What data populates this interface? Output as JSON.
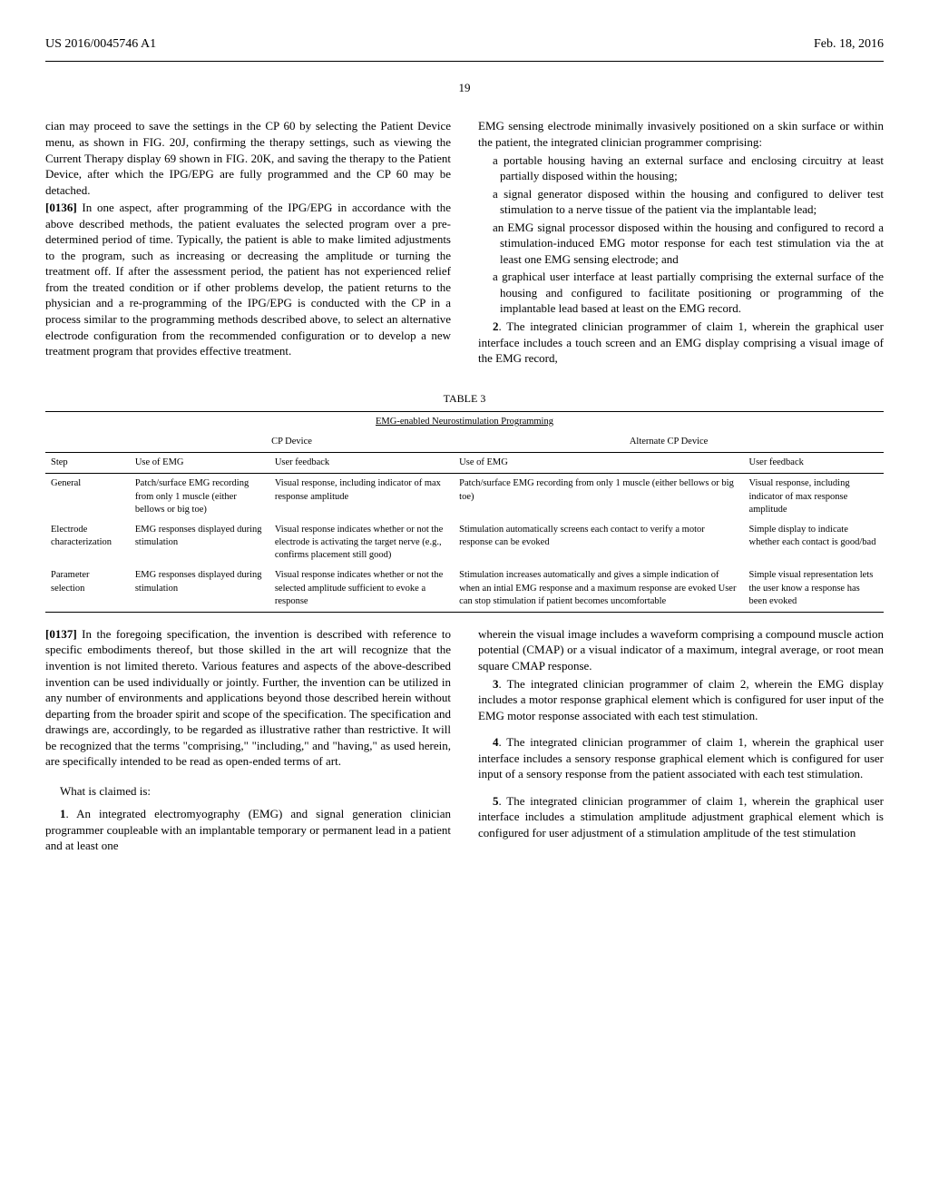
{
  "header": {
    "pub_number": "US 2016/0045746 A1",
    "pub_date": "Feb. 18, 2016"
  },
  "page_number": "19",
  "left_top": {
    "p1": "cian may proceed to save the settings in the CP 60 by selecting the Patient Device menu, as shown in FIG. 20J, confirming the therapy settings, such as viewing the Current Therapy display 69 shown in FIG. 20K, and saving the therapy to the Patient Device, after which the IPG/EPG are fully programmed and the CP 60 may be detached.",
    "p2_prefix": "[0136]",
    "p2": " In one aspect, after programming of the IPG/EPG in accordance with the above described methods, the patient evaluates the selected program over a pre-determined period of time. Typically, the patient is able to make limited adjustments to the program, such as increasing or decreasing the amplitude or turning the treatment off. If after the assessment period, the patient has not experienced relief from the treated condition or if other problems develop, the patient returns to the physician and a re-programming of the IPG/EPG is conducted with the CP in a process similar to the programming methods described above, to select an alternative electrode configuration from the recommended configuration or to develop a new treatment program that provides effective treatment."
  },
  "right_top": {
    "p1": "EMG sensing electrode minimally invasively positioned on a skin surface or within the patient, the integrated clinician programmer comprising:",
    "sub1": "a portable housing having an external surface and enclosing circuitry at least partially disposed within the housing;",
    "sub2": "a signal generator disposed within the housing and configured to deliver test stimulation to a nerve tissue of the patient via the implantable lead;",
    "sub3": "an EMG signal processor disposed within the housing and configured to record a stimulation-induced EMG motor response for each test stimulation via the at least one EMG sensing electrode; and",
    "sub4": "a graphical user interface at least partially comprising the external surface of the housing and configured to facilitate positioning or programming of the implantable lead based at least on the EMG record.",
    "claim2": ". The integrated clinician programmer of claim 1, wherein the graphical user interface includes a touch screen and an EMG display comprising a visual image of the EMG record,"
  },
  "table": {
    "title": "TABLE 3",
    "caption": "EMG-enabled Neurostimulation Programming",
    "group1": "CP Device",
    "group2": "Alternate CP Device",
    "col_step": "Step",
    "col_use1": "Use of EMG",
    "col_fb1": "User feedback",
    "col_use2": "Use of EMG",
    "col_fb2": "User feedback",
    "rows": [
      {
        "step": "General",
        "use1": "Patch/surface EMG recording from only 1 muscle (either bellows or big toe)",
        "fb1": "Visual response, including indicator of max response amplitude",
        "use2": "Patch/surface EMG recording from only 1 muscle (either bellows or big toe)",
        "fb2": "Visual response, including indicator of max response amplitude"
      },
      {
        "step": "Electrode characterization",
        "use1": "EMG responses displayed during stimulation",
        "fb1": "Visual response indicates whether or not the electrode is activating the target nerve (e.g., confirms placement still good)",
        "use2": "Stimulation automatically screens each contact to verify a motor response can be evoked",
        "fb2": "Simple display to indicate whether each contact is good/bad"
      },
      {
        "step": "Parameter selection",
        "use1": "EMG responses displayed during stimulation",
        "fb1": "Visual response indicates whether or not the selected amplitude sufficient to evoke a response",
        "use2": "Stimulation increases automatically and gives a simple indication of when an intial EMG response and a maximum response are evoked User can stop stimulation if patient becomes uncomfortable",
        "fb2": "Simple visual representation lets the user know a response has been evoked"
      }
    ]
  },
  "left_bottom": {
    "p1_prefix": "[0137]",
    "p1": " In the foregoing specification, the invention is described with reference to specific embodiments thereof, but those skilled in the art will recognize that the invention is not limited thereto. Various features and aspects of the above-described invention can be used individually or jointly. Further, the invention can be utilized in any number of environments and applications beyond those described herein without departing from the broader spirit and scope of the specification. The specification and drawings are, accordingly, to be regarded as illustrative rather than restrictive. It will be recognized that the terms \"comprising,\" \"including,\" and \"having,\" as used herein, are specifically intended to be read as open-ended terms of art.",
    "claims_heading": "What is claimed is:",
    "claim1": ". An integrated electromyography (EMG) and signal generation clinician programmer coupleable with an implantable temporary or permanent lead in a patient and at least one"
  },
  "right_bottom": {
    "p1": "wherein the visual image includes a waveform comprising a compound muscle action potential (CMAP) or a visual indicator of a maximum, integral average, or root mean square CMAP response.",
    "claim3": ". The integrated clinician programmer of claim 2, wherein the EMG display includes a motor response graphical element which is configured for user input of the EMG motor response associated with each test stimulation.",
    "claim4": ". The integrated clinician programmer of claim 1, wherein the graphical user interface includes a sensory response graphical element which is configured for user input of a sensory response from the patient associated with each test stimulation.",
    "claim5": ". The integrated clinician programmer of claim 1, wherein the graphical user interface includes a stimulation amplitude adjustment graphical element which is configured for user adjustment of a stimulation amplitude of the test stimulation"
  }
}
